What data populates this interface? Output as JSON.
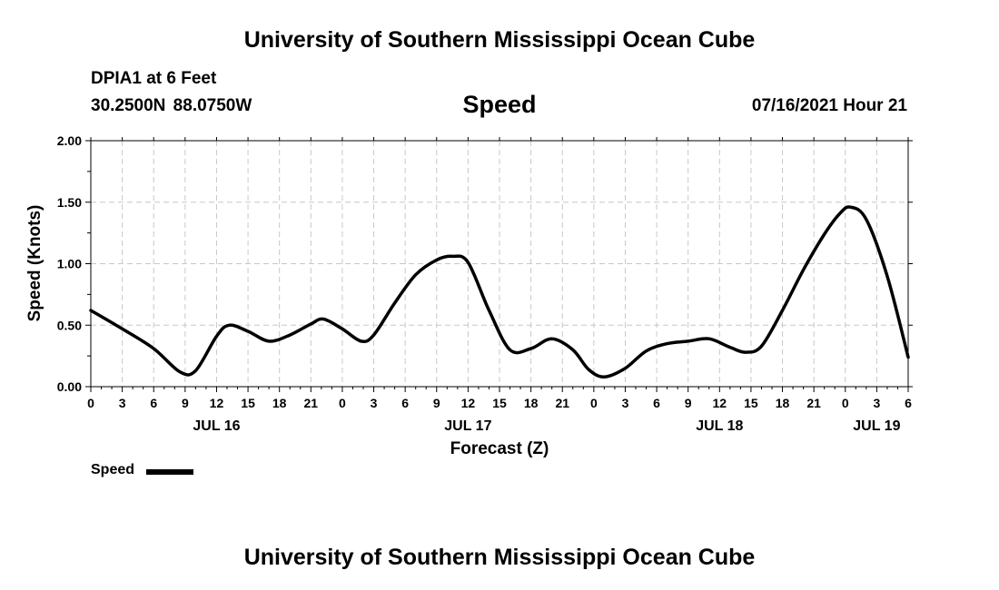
{
  "header": {
    "title_top": "University of Southern Mississippi Ocean Cube",
    "station_name": "DPIA1 at 6 Feet",
    "station_coords": "30.2500N  88.0750W",
    "variable": "Speed",
    "datetime": "07/16/2021 Hour 21"
  },
  "footer": {
    "title_bottom": "University of Southern Mississippi Ocean Cube"
  },
  "colors": {
    "line": "#000000",
    "grid": "#c8c8c8",
    "axis": "#000000"
  },
  "chart_data": {
    "type": "line",
    "title": "Speed",
    "xlabel": "Forecast (Z)",
    "ylabel": "Speed (Knots)",
    "ylim": [
      0,
      2
    ],
    "yticks": [
      "0.00",
      "0.50",
      "1.00",
      "1.50",
      "2.00"
    ],
    "xlim": [
      0,
      78
    ],
    "x_unit": "hours since JUL 16 00Z",
    "xticks": [
      "0",
      "3",
      "6",
      "9",
      "12",
      "15",
      "18",
      "21",
      "0",
      "3",
      "6",
      "9",
      "12",
      "15",
      "18",
      "21",
      "0",
      "3",
      "6",
      "9",
      "12",
      "15",
      "18",
      "21",
      "0",
      "3",
      "6"
    ],
    "date_labels": [
      {
        "x": 12,
        "label": "JUL 16"
      },
      {
        "x": 36,
        "label": "JUL 17"
      },
      {
        "x": 60,
        "label": "JUL 18"
      },
      {
        "x": 75,
        "label": "JUL 19"
      }
    ],
    "legend": [
      {
        "name": "Speed"
      }
    ],
    "series": [
      {
        "name": "Speed",
        "x": [
          0,
          3,
          6,
          8.5,
          10,
          12,
          13.2,
          15,
          17,
          19,
          21,
          22.2,
          24,
          25.8,
          27,
          29,
          31,
          33,
          34.5,
          36,
          38,
          40,
          42,
          44,
          46,
          47.5,
          49,
          51,
          53,
          55,
          57,
          59,
          61,
          62.5,
          64,
          66,
          68,
          70,
          71.5,
          72.5,
          74,
          76,
          78
        ],
        "values": [
          0.62,
          0.47,
          0.31,
          0.12,
          0.13,
          0.41,
          0.5,
          0.45,
          0.37,
          0.42,
          0.51,
          0.55,
          0.47,
          0.37,
          0.42,
          0.68,
          0.91,
          1.03,
          1.06,
          1.01,
          0.62,
          0.3,
          0.31,
          0.39,
          0.3,
          0.14,
          0.08,
          0.15,
          0.29,
          0.35,
          0.37,
          0.39,
          0.32,
          0.28,
          0.33,
          0.62,
          0.95,
          1.24,
          1.41,
          1.46,
          1.36,
          0.9,
          0.24
        ]
      }
    ]
  }
}
